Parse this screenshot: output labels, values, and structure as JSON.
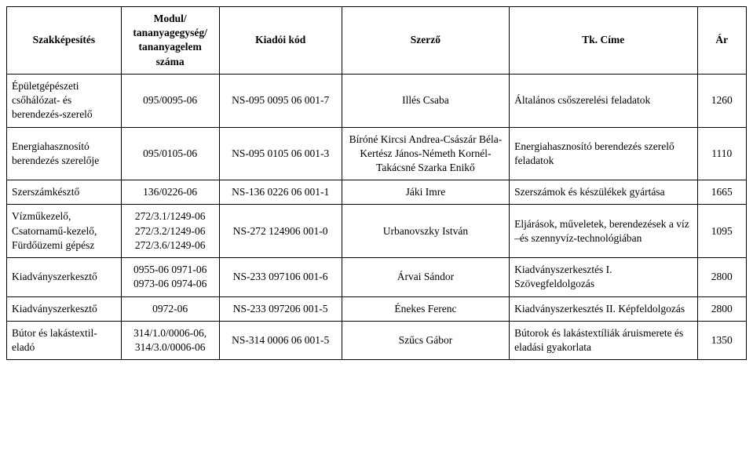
{
  "headers": {
    "szak": "Szakképesítés",
    "modul": "Modul/ tananyagegység/ tananyagelem száma",
    "kiado": "Kiadói kód",
    "szerzo": "Szerző",
    "cime": "Tk. Címe",
    "ar": "Ár"
  },
  "rows": [
    {
      "szak": "Épületgépészeti csőhálózat- és berendezés-szerelő",
      "modul": "095/0095-06",
      "kiado": "NS-095 0095 06 001-7",
      "szerzo": "Illés Csaba",
      "cime": "Általános csőszerelési feladatok",
      "ar": "1260"
    },
    {
      "szak": "Energiahasznosító berendezés szerelője",
      "modul": "095/0105-06",
      "kiado": "NS-095 0105 06 001-3",
      "szerzo": "Bíróné Kircsi Andrea-Császár Béla-Kertész János-Németh Kornél-Takácsné Szarka Enikő",
      "cime": "Energiahasznosító berendezés szerelő feladatok",
      "ar": "1110"
    },
    {
      "szak": "Szerszámkésztő",
      "modul": "136/0226-06",
      "kiado": "NS-136 0226 06 001-1",
      "szerzo": "Jáki Imre",
      "cime": "Szerszámok és készülékek gyártása",
      "ar": "1665"
    },
    {
      "szak": "Vízműkezelő, Csatornamű-kezelő, Fürdőüzemi gépész",
      "modul": "272/3.1/1249-06 272/3.2/1249-06 272/3.6/1249-06",
      "kiado": "NS-272 124906 001-0",
      "szerzo": "Urbanovszky István",
      "cime": "Eljárások, műveletek, berendezések a víz –és szennyvíz-technológiában",
      "ar": "1095"
    },
    {
      "szak": "Kiadványszerkesztő",
      "modul": "0955-06 0971-06 0973-06 0974-06",
      "kiado": "NS-233 097106 001-6",
      "szerzo": "Árvai Sándor",
      "cime": "Kiadványszerkesztés I. Szövegfeldolgozás",
      "ar": "2800"
    },
    {
      "szak": "Kiadványszerkesztő",
      "modul": "0972-06",
      "kiado": "NS-233 097206 001-5",
      "szerzo": "Énekes Ferenc",
      "cime": "Kiadványszerkesztés II. Képfeldolgozás",
      "ar": "2800"
    },
    {
      "szak": "Bútor és lakástextil-eladó",
      "modul": "314/1.0/0006-06, 314/3.0/0006-06",
      "kiado": "NS-314 0006 06 001-5",
      "szerzo": "Szűcs Gábor",
      "cime": "Bútorok és lakástextíliák áruismerete és eladási gyakorlata",
      "ar": "1350"
    }
  ]
}
